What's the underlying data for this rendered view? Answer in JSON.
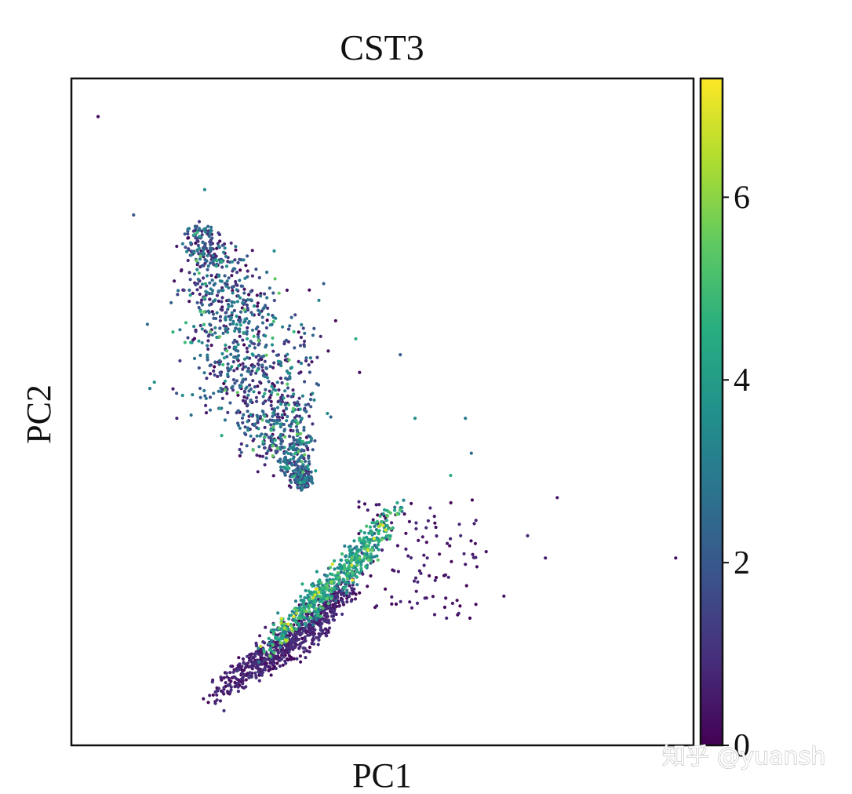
{
  "chart_data": {
    "type": "scatter",
    "title": "CST3",
    "xlabel": "PC1",
    "ylabel": "PC2",
    "xticks": [],
    "yticks": [],
    "grid": false,
    "xlim": [
      -4.5,
      16.5
    ],
    "ylim": [
      -11.5,
      9.5
    ],
    "colormap": "viridis",
    "colorbar": {
      "label": "",
      "range": [
        0,
        7.3
      ],
      "ticks": [
        0,
        2,
        4,
        6
      ],
      "tick_labels": [
        "0",
        "2",
        "4",
        "6"
      ],
      "placement": "right"
    },
    "marker": "point",
    "point_count_estimate": 2700,
    "clusters": [
      {
        "name": "upper-left branch",
        "apex": [
          -0.4,
          4.9
        ],
        "base_left": [
          0.4,
          -3.2
        ],
        "base_right": [
          6.4,
          -3.6
        ],
        "value_range": [
          0.0,
          5.5
        ],
        "note": "points spread from apex toward the convergence point; values mostly 1.5–4.5"
      },
      {
        "name": "lower triangle cluster",
        "apex": [
          6.7,
          -3.7
        ],
        "base_left": [
          0.0,
          -10.2
        ],
        "base_right": [
          4.0,
          -8.0
        ],
        "value_range": [
          0.0,
          7.2
        ],
        "note": "bright (4–7) in the upper portion, dark (0–1) along the lower edge and bottom-left corner"
      }
    ],
    "notable_points": [
      {
        "x": -3.6,
        "y": 8.3,
        "value": 0.2
      },
      {
        "x": -2.4,
        "y": 5.2,
        "value": 2.0
      },
      {
        "x": 0.0,
        "y": 6.0,
        "value": 3.5
      },
      {
        "x": 6.6,
        "y": 0.8,
        "value": 2.2
      },
      {
        "x": 5.1,
        "y": 1.3,
        "value": 4.5
      },
      {
        "x": 7.1,
        "y": -1.2,
        "value": 3.6
      },
      {
        "x": 8.8,
        "y": -1.2,
        "value": 3.0
      },
      {
        "x": 9.0,
        "y": -2.3,
        "value": 2.6
      },
      {
        "x": 8.3,
        "y": -3.0,
        "value": 4.6
      },
      {
        "x": 11.9,
        "y": -3.7,
        "value": 0.4
      },
      {
        "x": 10.9,
        "y": -4.9,
        "value": 0.8
      },
      {
        "x": 11.5,
        "y": -5.6,
        "value": 0.5
      },
      {
        "x": 15.9,
        "y": -5.6,
        "value": 0.3
      },
      {
        "x": 10.1,
        "y": -6.8,
        "value": 0.3
      },
      {
        "x": 9.5,
        "y": -5.4,
        "value": 0.4
      },
      {
        "x": 8.8,
        "y": -5.8,
        "value": 0.5
      }
    ]
  },
  "watermark": "知乎 @yuansh",
  "colors": {
    "frame": "#111111",
    "background": "#ffffff"
  }
}
